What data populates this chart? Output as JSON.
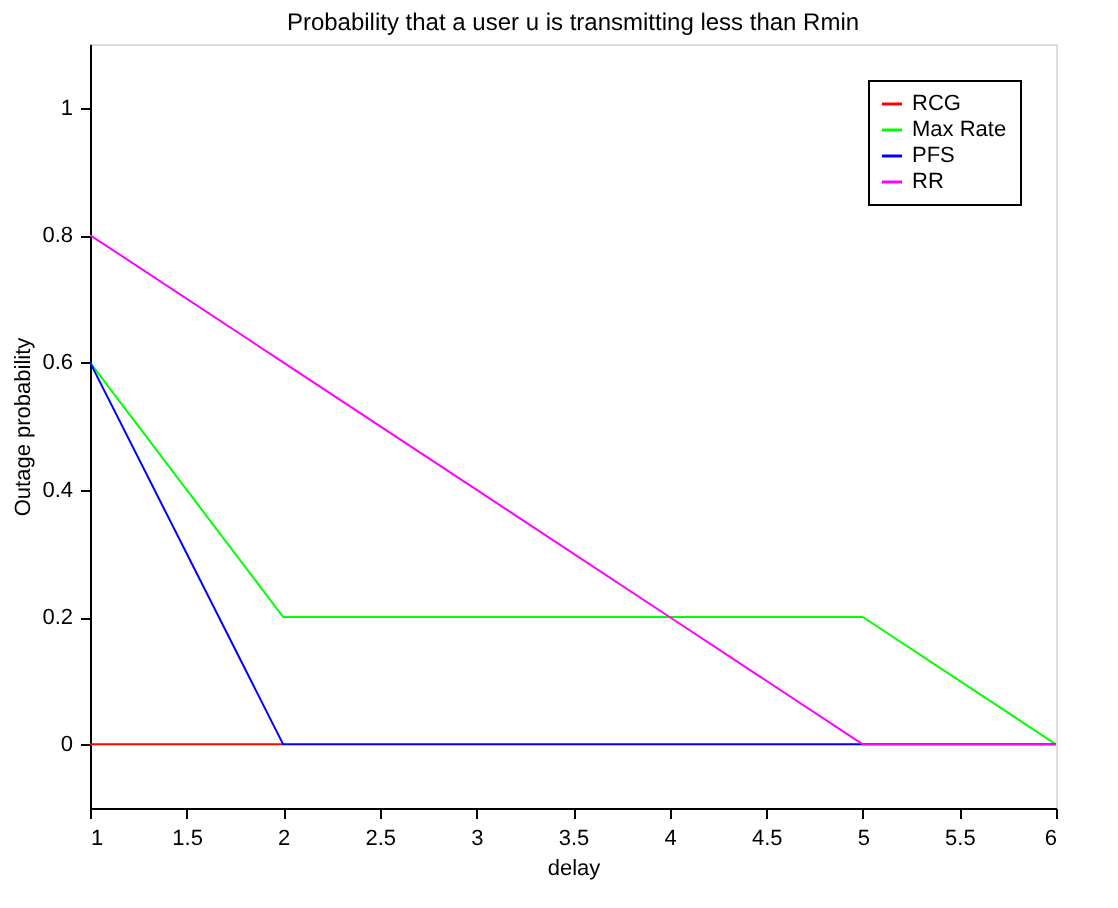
{
  "chart_data": {
    "type": "line",
    "title": "Probability that a user u is transmitting less than Rmin",
    "xlabel": "delay",
    "ylabel": "Outage probability",
    "x": [
      1,
      2,
      3,
      4,
      5,
      6
    ],
    "series": [
      {
        "name": "RCG",
        "color": "#ff0000",
        "values": [
          0,
          0,
          null,
          null,
          null,
          null
        ]
      },
      {
        "name": "Max Rate",
        "color": "#00ff00",
        "values": [
          0.6,
          0.2,
          0.2,
          0.2,
          0.2,
          0
        ]
      },
      {
        "name": "PFS",
        "color": "#0000ff",
        "values": [
          0.6,
          0,
          0,
          0,
          0,
          0
        ]
      },
      {
        "name": "RR",
        "color": "#ff00ff",
        "values": [
          0.8,
          0.6,
          0.4,
          0.2,
          0,
          0
        ]
      }
    ],
    "xlim": [
      1,
      6
    ],
    "xticks": [
      1,
      1.5,
      2,
      2.5,
      3,
      3.5,
      4,
      4.5,
      5,
      5.5,
      6
    ],
    "ylim": [
      -0.1,
      1.1
    ],
    "yticks": [
      0,
      0.2,
      0.4,
      0.6,
      0.8,
      1
    ],
    "grid": false,
    "legend": "top right"
  }
}
